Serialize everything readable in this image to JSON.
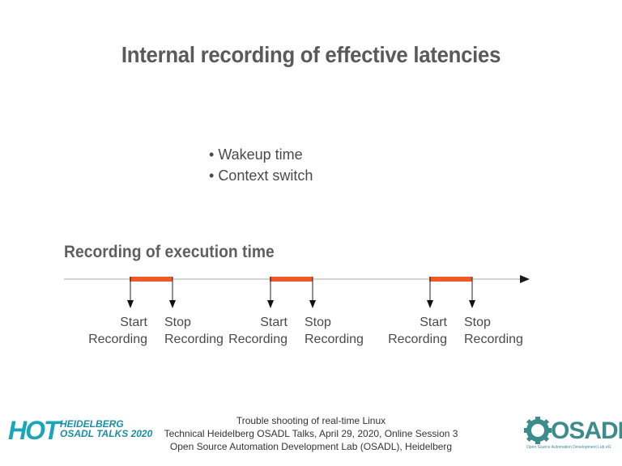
{
  "slide": {
    "title": "Internal recording of effective latencies",
    "bullets": [
      "Wakeup time",
      "Context switch"
    ],
    "section_title": "Recording of execution time",
    "timeline": {
      "segments": [
        {
          "start_label_1": "Start",
          "start_label_2": "Recording",
          "stop_label_1": "Stop",
          "stop_label_2": "Recording"
        },
        {
          "start_label_1": "Start",
          "start_label_2": "Recording",
          "stop_label_1": "Stop",
          "stop_label_2": "Recording"
        },
        {
          "start_label_1": "Start",
          "start_label_2": "Recording",
          "stop_label_1": "Stop",
          "stop_label_2": "Recording"
        }
      ],
      "bar_color": "#f05a28",
      "axis_color": "#aaaaaa"
    },
    "footer": {
      "line1": "Trouble shooting of real-time Linux",
      "line2": "Technical Heidelberg OSADL Talks, April 29, 2020, Online Session 3",
      "line3": "Open Source Automation Development Lab (OSADL), Heidelberg"
    },
    "logo_hot": {
      "main": "HOT",
      "line1": "HEIDELBERG",
      "line2": "OSADL TALKS",
      "year": "2020"
    },
    "logo_osadl": {
      "main": "OSADL",
      "tagline": "Open Source Automation Development Lab eG"
    }
  }
}
